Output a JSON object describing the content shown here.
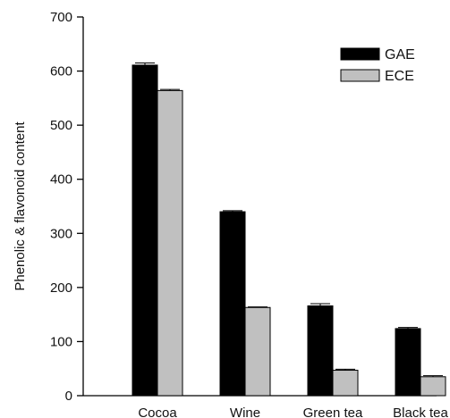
{
  "chart_data": {
    "type": "bar",
    "title": "",
    "xlabel": "",
    "ylabel": "Phenolic & flavonoid content",
    "categories": [
      "Cocoa",
      "Wine",
      "Green tea",
      "Black tea"
    ],
    "series": [
      {
        "name": "GAE",
        "values": [
          611,
          340,
          166,
          124
        ],
        "errors": [
          4,
          2,
          4,
          2
        ],
        "color": "#000000"
      },
      {
        "name": "ECE",
        "values": [
          564,
          163,
          47,
          35
        ],
        "errors": [
          2,
          1,
          2,
          2
        ],
        "color": "#c0c0c0"
      }
    ],
    "ylim": [
      0,
      700
    ],
    "yticks": [
      0,
      100,
      200,
      300,
      400,
      500,
      600,
      700
    ],
    "grid": false,
    "legend_position": "top-right"
  }
}
